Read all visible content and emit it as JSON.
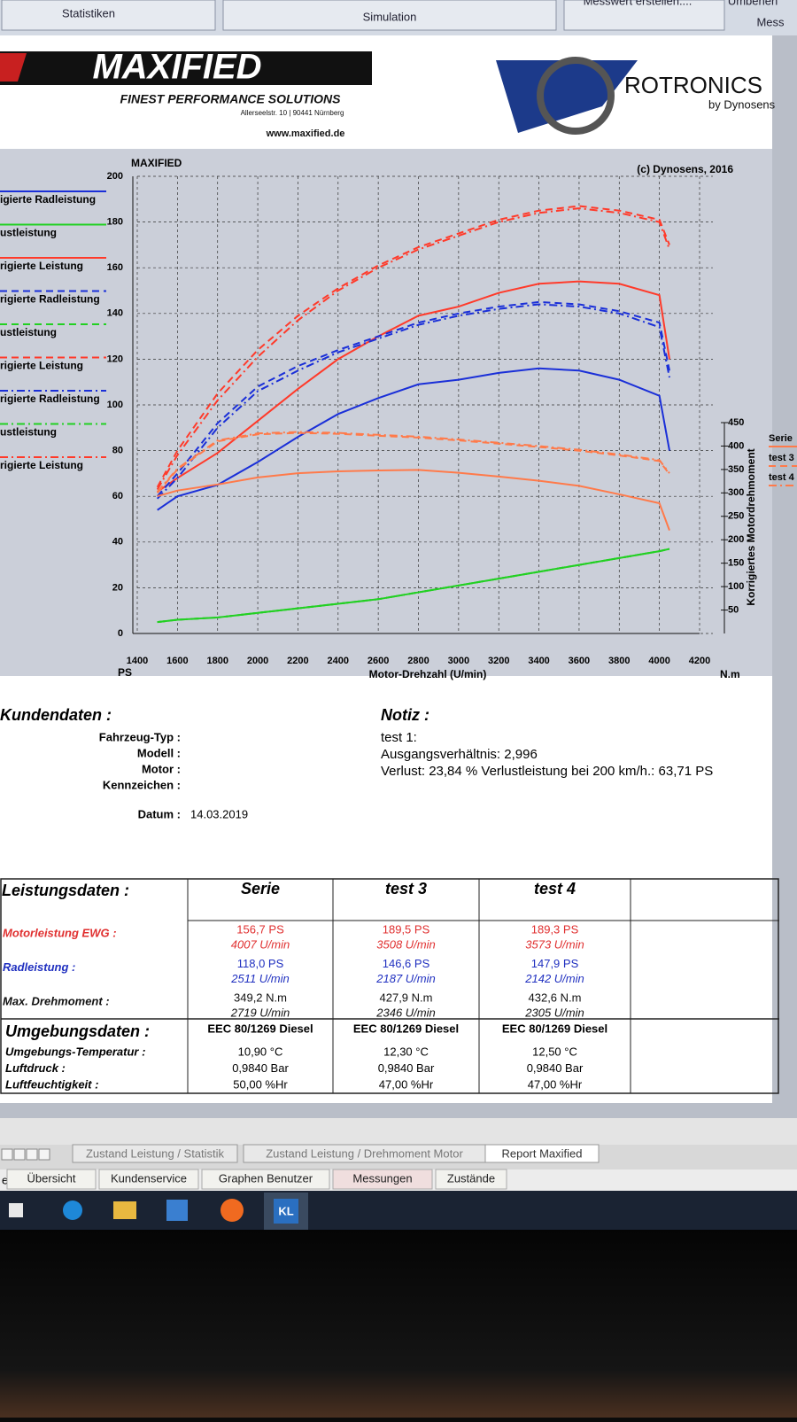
{
  "top_tabs": [
    "Statistiken",
    "Simulation",
    "Messwert erstellen....",
    "Umbenen",
    "Mess"
  ],
  "header": {
    "brand": "MAXIFIED",
    "slogan": "FINEST PERFORMANCE SOLUTIONS",
    "address": "Allerseelstr. 10 | 90441 Nürnberg",
    "url": "www.maxified.de",
    "partner": "ROTRONICS",
    "partner_sub": "by Dynosens"
  },
  "chart_data": {
    "type": "line",
    "title": "MAXIFIED",
    "subtitle": "(c) Dynosens, 2016",
    "xlabel": "Motor-Drehzahl (U/min)",
    "ylabel": "PS",
    "y2label": "Korrigiertes Motordrehmoment",
    "y2unit": "N.m",
    "x": [
      1500,
      1600,
      1800,
      2000,
      2200,
      2400,
      2600,
      2800,
      3000,
      3200,
      3400,
      3600,
      3800,
      4000,
      4050
    ],
    "xlim": [
      1400,
      4200
    ],
    "xticks": [
      1400,
      1600,
      1800,
      2000,
      2200,
      2400,
      2600,
      2800,
      3000,
      3200,
      3400,
      3600,
      3800,
      4000,
      4200
    ],
    "ylim": [
      0,
      200
    ],
    "yticks": [
      0,
      20,
      40,
      60,
      80,
      100,
      120,
      140,
      160,
      180,
      200
    ],
    "y2lim": [
      0,
      450
    ],
    "y2ticks": [
      50,
      100,
      150,
      200,
      250,
      300,
      350,
      400,
      450
    ],
    "grid": true,
    "series": [
      {
        "name": "igierte Radleistung",
        "color": "#1a2fd8",
        "dash": "solid",
        "values": [
          54,
          60,
          65,
          75,
          86,
          96,
          103,
          109,
          111,
          114,
          116,
          115,
          111,
          104,
          80
        ]
      },
      {
        "name": "ustleistung",
        "color": "#22d022",
        "dash": "solid",
        "values": [
          5,
          6,
          7,
          9,
          11,
          13,
          15,
          18,
          21,
          24,
          27,
          30,
          33,
          36,
          37
        ]
      },
      {
        "name": "rigierte Leistung",
        "color": "#ff3a2a",
        "dash": "solid",
        "values": [
          62,
          68,
          79,
          93,
          107,
          120,
          130,
          139,
          143,
          149,
          153,
          154,
          153,
          148,
          120
        ]
      },
      {
        "name": "rigierte Radleistung",
        "color": "#1a2fd8",
        "dash": "dashed",
        "values": [
          60,
          70,
          92,
          108,
          117,
          124,
          130,
          136,
          140,
          143,
          145,
          144,
          141,
          136,
          115
        ]
      },
      {
        "name": "ustleistung",
        "color": "#22d022",
        "dash": "dashed",
        "values": [
          5,
          6,
          7,
          9,
          11,
          13,
          15,
          18,
          21,
          24,
          27,
          30,
          33,
          36,
          37
        ]
      },
      {
        "name": "rigierte Leistung",
        "color": "#ff3a2a",
        "dash": "dashed",
        "values": [
          64,
          80,
          105,
          124,
          139,
          151,
          161,
          169,
          175,
          181,
          185,
          187,
          185,
          181,
          170
        ]
      },
      {
        "name": "rigierte Radleistung",
        "color": "#1a2fd8",
        "dash": "dashdot",
        "values": [
          59,
          68,
          90,
          106,
          115,
          123,
          129,
          135,
          139,
          142,
          144,
          143,
          140,
          134,
          112
        ]
      },
      {
        "name": "ustleistung",
        "color": "#22d022",
        "dash": "dashdot",
        "values": [
          5,
          6,
          7,
          9,
          11,
          13,
          15,
          18,
          21,
          24,
          27,
          30,
          33,
          36,
          37
        ]
      },
      {
        "name": "rigierte Leistung",
        "color": "#ff3a2a",
        "dash": "dashdot",
        "values": [
          63,
          78,
          102,
          121,
          137,
          150,
          160,
          168,
          174,
          180,
          184,
          186,
          184,
          180,
          168
        ]
      },
      {
        "name": "Serie",
        "color": "#ff7a4a",
        "dash": "solid",
        "axis": "y2",
        "values": [
          293,
          305,
          318,
          333,
          342,
          346,
          348,
          349,
          343,
          335,
          326,
          315,
          297,
          278,
          220
        ]
      },
      {
        "name": "test 3",
        "color": "#ff7a4a",
        "dash": "dashed",
        "axis": "y2",
        "values": [
          300,
          350,
          410,
          425,
          428,
          426,
          422,
          418,
          412,
          405,
          398,
          390,
          380,
          368,
          340
        ]
      },
      {
        "name": "test 4",
        "color": "#ff7a4a",
        "dash": "dashdot",
        "axis": "y2",
        "values": [
          302,
          352,
          412,
          427,
          430,
          428,
          424,
          420,
          414,
          407,
          400,
          392,
          382,
          370,
          342
        ]
      }
    ]
  },
  "customer": {
    "title": "Kundendaten :",
    "fields": [
      "Fahrzeug-Typ :",
      "Modell :",
      "Motor :",
      "Kennzeichen :"
    ],
    "date_label": "Datum :",
    "date": "14.03.2019"
  },
  "note": {
    "title": "Notiz :",
    "lines": [
      "test 1:",
      "Ausgangsverhältnis: 2,996",
      "Verlust: 23,84 %  Verlustleistung bei 200 km/h.: 63,71 PS"
    ]
  },
  "performance": {
    "title": "Leistungsdaten :",
    "columns": [
      "Serie",
      "test 3",
      "test 4"
    ],
    "rows": [
      {
        "label": "Motorleistung EWG :",
        "color": "#e03030",
        "cells": [
          [
            "156,7 PS",
            "4007 U/min"
          ],
          [
            "189,5 PS",
            "3508 U/min"
          ],
          [
            "189,3 PS",
            "3573 U/min"
          ]
        ]
      },
      {
        "label": "Radleistung :",
        "color": "#2030c0",
        "cells": [
          [
            "118,0 PS",
            "2511 U/min"
          ],
          [
            "146,6 PS",
            "2187 U/min"
          ],
          [
            "147,9 PS",
            "2142 U/min"
          ]
        ]
      },
      {
        "label": "Max. Drehmoment :",
        "color": "#111111",
        "cells": [
          [
            "349,2 N.m",
            "2719 U/min"
          ],
          [
            "427,9 N.m",
            "2346 U/min"
          ],
          [
            "432,6 N.m",
            "2305 U/min"
          ]
        ]
      }
    ]
  },
  "environment": {
    "title": "Umgebungsdaten :",
    "columns": [
      "EEC 80/1269 Diesel",
      "EEC 80/1269 Diesel",
      "EEC 80/1269 Diesel"
    ],
    "rows": [
      {
        "label": "Umgebungs-Temperatur :",
        "cells": [
          "10,90 °C",
          "12,30 °C",
          "12,50 °C"
        ]
      },
      {
        "label": "Luftdruck :",
        "cells": [
          "0,9840 Bar",
          "0,9840 Bar",
          "0,9840 Bar"
        ]
      },
      {
        "label": "Luftfeuchtigkeit :",
        "cells": [
          "50,00 %Hr",
          "47,00 %Hr",
          "47,00 %Hr"
        ]
      }
    ]
  },
  "report_tabs": [
    "Zustand Leistung / Statistik",
    "Zustand Leistung / Drehmoment Motor",
    "Report Maxified"
  ],
  "buttons": [
    "Übersicht",
    "Kundenservice",
    "Graphen Benutzer",
    "Messungen",
    "Zustände"
  ],
  "status": "ereit",
  "taskbar_app": "KL"
}
